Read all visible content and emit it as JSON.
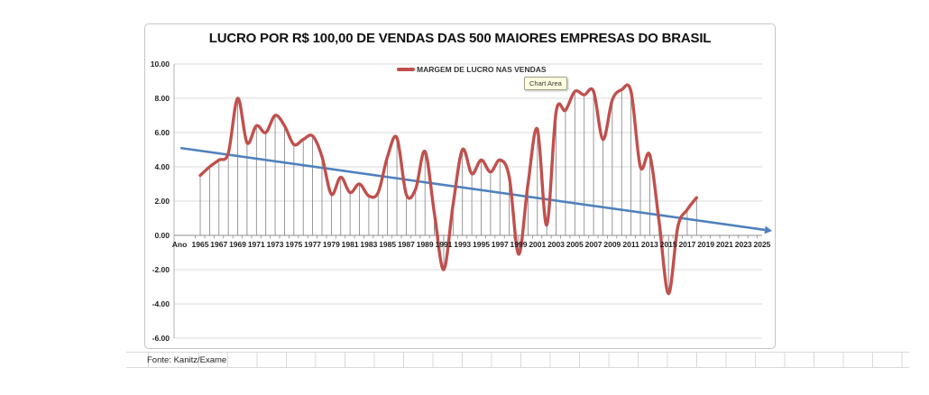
{
  "chart_data": {
    "type": "line",
    "title": "LUCRO POR R$ 100,00 DE VENDAS DAS 500 MAIORES EMPRESAS DO BRASIL",
    "legend": {
      "label": "MARGEM DE LUCRO NAS VENDAS",
      "position": "top-center"
    },
    "series_color": "#C0504D",
    "years": [
      1965,
      1966,
      1967,
      1968,
      1969,
      1970,
      1971,
      1972,
      1973,
      1974,
      1975,
      1976,
      1977,
      1978,
      1979,
      1980,
      1981,
      1982,
      1983,
      1984,
      1985,
      1986,
      1987,
      1988,
      1989,
      1990,
      1991,
      1992,
      1993,
      1994,
      1995,
      1996,
      1997,
      1998,
      1999,
      2000,
      2001,
      2002,
      2003,
      2004,
      2005,
      2006,
      2007,
      2008,
      2009,
      2010,
      2011,
      2012,
      2013,
      2014,
      2015,
      2016,
      2017,
      2018
    ],
    "values": [
      3.5,
      4.0,
      4.4,
      4.8,
      8.0,
      5.4,
      6.4,
      6.0,
      7.0,
      6.4,
      5.3,
      5.6,
      5.8,
      4.6,
      2.4,
      3.4,
      2.5,
      3.0,
      2.3,
      2.5,
      4.6,
      5.7,
      2.4,
      2.7,
      4.9,
      1.3,
      -2.0,
      1.8,
      5.0,
      3.6,
      4.4,
      3.7,
      4.4,
      3.4,
      -1.1,
      3.0,
      6.2,
      0.6,
      7.2,
      7.3,
      8.4,
      8.2,
      8.4,
      5.6,
      7.9,
      8.5,
      8.4,
      4.0,
      4.7,
      0.8,
      -3.4,
      0.5,
      1.5,
      2.2
    ],
    "trendline": {
      "color": "#4F81BD",
      "start_year": 1962.9,
      "start_value": 5.1,
      "end_year": 2025.3,
      "end_value": 0.32,
      "arrow": true
    },
    "x_axis_prefix": "Ano",
    "x_tick_labels": [
      "1965",
      "1967",
      "1969",
      "1971",
      "1973",
      "1975",
      "1977",
      "1979",
      "1981",
      "1983",
      "1985",
      "1987",
      "1989",
      "1991",
      "1993",
      "1995",
      "1997",
      "1999",
      "2001",
      "2003",
      "2005",
      "2007",
      "2009",
      "2011",
      "2013",
      "2015",
      "2017",
      "2019",
      "2021",
      "2023",
      "2025"
    ],
    "y_tick_labels": [
      "10.00",
      "8.00",
      "6.00",
      "4.00",
      "2.00",
      "0.00",
      "-2.00",
      "-4.00",
      "-6.00"
    ],
    "ylim": [
      -6,
      10
    ],
    "xlim": [
      1963,
      2026
    ],
    "grid": "horizontal",
    "drop_lines": true,
    "gridline_color": "#d9d9d9",
    "axis_color": "#8c8c8c",
    "drop_line_color": "#7f7f7f",
    "legend_position": "top-center"
  },
  "tooltip": {
    "text": "Chart Area",
    "background": "#ffffe1"
  },
  "footer": {
    "source": "Fonte: Kanitz/Exame"
  }
}
